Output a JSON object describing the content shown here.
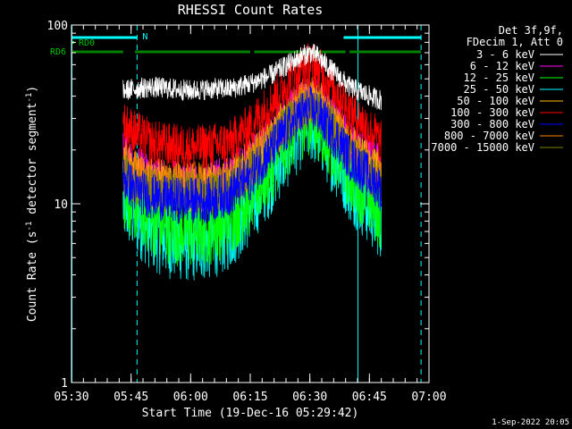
{
  "chart_data": {
    "type": "line",
    "title": "RHESSI Count Rates",
    "xlabel": "Start Time (19-Dec-16 05:29:42)",
    "ylabel_main": "Count Rate (s",
    "ylabel_sup1": "-1",
    "ylabel_mid": " detector segment",
    "ylabel_sup2": "-1",
    "ylabel_end": ")",
    "y_scale": "log",
    "xlim_minutes": [
      0,
      90
    ],
    "ylim": [
      1,
      100
    ],
    "x_ticks": [
      {
        "label": "05:30",
        "min": 0
      },
      {
        "label": "05:45",
        "min": 15
      },
      {
        "label": "06:00",
        "min": 30
      },
      {
        "label": "06:15",
        "min": 45
      },
      {
        "label": "06:30",
        "min": 60
      },
      {
        "label": "06:45",
        "min": 75
      },
      {
        "label": "07:00",
        "min": 90
      }
    ],
    "y_ticks": [
      {
        "label": "1",
        "value": 1
      },
      {
        "label": "10",
        "value": 10
      },
      {
        "label": "100",
        "value": 100
      }
    ],
    "legend_header": [
      "Det 3f,9f,",
      "FDecim 1, Att 0"
    ],
    "series": [
      {
        "name": "3 - 6 keV",
        "color": "#ffffff",
        "x": [
          13,
          16,
          20,
          25,
          30,
          35,
          40,
          45,
          50,
          55,
          58,
          60,
          62,
          65,
          70,
          75,
          78
        ],
        "y": [
          43,
          44,
          45,
          44,
          43,
          44,
          44,
          47,
          52,
          61,
          67,
          70,
          67,
          57,
          45,
          40,
          38
        ]
      },
      {
        "name": "6 - 12 keV",
        "color": "#ff00ff",
        "x": [
          13,
          16,
          20,
          25,
          30,
          35,
          40,
          45,
          50,
          55,
          58,
          60,
          62,
          65,
          70,
          75,
          78
        ],
        "y": [
          19,
          16,
          14,
          13,
          13,
          13,
          14,
          17,
          23,
          32,
          37,
          39,
          37,
          31,
          22,
          18,
          16
        ]
      },
      {
        "name": "12 - 25 keV",
        "color": "#00ff00",
        "x": [
          13,
          16,
          20,
          25,
          30,
          35,
          40,
          45,
          50,
          55,
          58,
          60,
          62,
          65,
          70,
          75,
          78
        ],
        "y": [
          12,
          10,
          8.5,
          7.5,
          7.2,
          7.5,
          8.5,
          11,
          16,
          24,
          29,
          31,
          29,
          23,
          15,
          11,
          9
        ]
      },
      {
        "name": "25 - 50 keV",
        "color": "#00ffff",
        "x": [
          13,
          16,
          20,
          25,
          30,
          35,
          40,
          45,
          50,
          55,
          58,
          60,
          62,
          65,
          70,
          75,
          78
        ],
        "y": [
          10,
          8.5,
          7,
          6.2,
          6,
          6.2,
          7,
          9.5,
          14,
          21,
          26,
          28,
          26,
          20,
          13,
          9.5,
          8
        ]
      },
      {
        "name": "50 - 100 keV",
        "color": "#ffc000",
        "x": [
          13,
          16,
          20,
          25,
          30,
          35,
          40,
          45,
          50,
          55,
          58,
          60,
          62,
          65,
          70,
          75,
          78
        ],
        "y": [
          16,
          14,
          12.5,
          12,
          12,
          12,
          13,
          16,
          22,
          30,
          35,
          37,
          35,
          29,
          20,
          16,
          14
        ]
      },
      {
        "name": "100 - 300 keV",
        "color": "#ff0000",
        "x": [
          13,
          16,
          20,
          25,
          30,
          35,
          40,
          45,
          50,
          55,
          58,
          60,
          62,
          65,
          70,
          75,
          78
        ],
        "y": [
          28,
          25,
          22,
          21,
          20.5,
          21,
          22,
          27,
          36,
          49,
          57,
          60,
          57,
          48,
          33,
          26,
          22
        ]
      },
      {
        "name": "300 - 800 keV",
        "color": "#0000ff",
        "x": [
          13,
          16,
          20,
          25,
          30,
          35,
          40,
          45,
          50,
          55,
          58,
          60,
          62,
          65,
          70,
          75,
          78
        ],
        "y": [
          14,
          12,
          11,
          10.5,
          10.5,
          10.5,
          11.5,
          14,
          19.5,
          27,
          32,
          34,
          32,
          26,
          18,
          14,
          12
        ]
      },
      {
        "name": "800 - 7000 keV",
        "color": "#ff8000",
        "x": [
          13,
          16,
          20,
          25,
          30,
          35,
          40,
          45,
          50,
          55,
          58,
          60,
          62,
          65,
          70,
          75,
          78
        ],
        "y": [
          17,
          15,
          13.5,
          13,
          13,
          13,
          14,
          17,
          23,
          32,
          37,
          39,
          37,
          31,
          21,
          17,
          15
        ]
      },
      {
        "name": "7000 - 15000 keV",
        "color": "#808000",
        "x": [
          13,
          16,
          20,
          25,
          30,
          35,
          40,
          45,
          50,
          55,
          58,
          60,
          62,
          65,
          70,
          75,
          78
        ],
        "y": [
          15,
          13,
          12,
          11.5,
          11.5,
          11.5,
          12.5,
          15,
          21,
          29,
          34,
          36,
          34,
          28,
          19,
          15,
          13
        ]
      }
    ],
    "attenuator_bars": {
      "rd0_label": "RD0",
      "rd6_label": "RD6",
      "n_label": "N",
      "rd6_segments": [
        [
          0,
          13
        ],
        [
          16,
          45
        ],
        [
          46,
          69
        ],
        [
          70,
          88
        ]
      ],
      "n_segments": [
        [
          0,
          16.5
        ],
        [
          68.5,
          88
        ]
      ],
      "dashed_lines_min": [
        16.5,
        88
      ],
      "solid_lines_min": [
        0,
        72
      ]
    },
    "timestamp": "1-Sep-2022 20:05"
  }
}
